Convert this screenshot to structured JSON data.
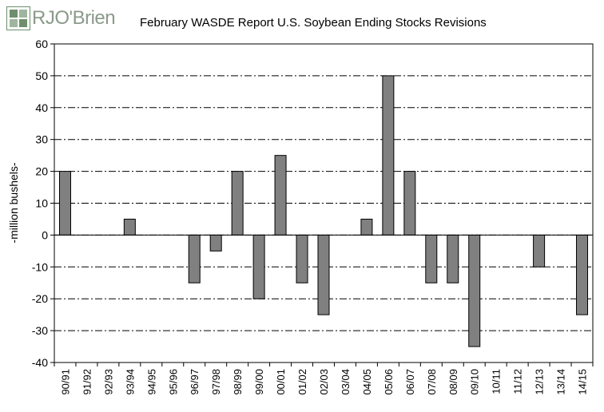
{
  "logo": {
    "text": "RJO'Brien",
    "icon": "rjo-logo-mark-icon",
    "color": "#6e8f6e"
  },
  "chart_data": {
    "type": "bar",
    "title": "February WASDE Report U.S. Soybean Ending Stocks Revisions",
    "ylabel": "-million bushels-",
    "xlabel": "",
    "ylim": [
      -40,
      60
    ],
    "yticks": [
      60,
      50,
      40,
      30,
      20,
      10,
      0,
      -10,
      -20,
      -30,
      -40
    ],
    "grid": true,
    "legend": "none",
    "bar_color": "#808080",
    "categories": [
      "90/91",
      "91/92",
      "92/93",
      "93/94",
      "94/95",
      "95/96",
      "96/97",
      "97/98",
      "98/99",
      "99/00",
      "00/01",
      "01/02",
      "02/03",
      "03/04",
      "04/05",
      "05/06",
      "06/07",
      "07/08",
      "08/09",
      "09/10",
      "10/11",
      "11/12",
      "12/13",
      "13/14",
      "14/15"
    ],
    "values": [
      20,
      0,
      0,
      5,
      0,
      0,
      -15,
      -5,
      20,
      -20,
      25,
      -15,
      -25,
      0,
      5,
      50,
      20,
      -15,
      -15,
      -35,
      0,
      0,
      -10,
      0,
      -25
    ]
  }
}
